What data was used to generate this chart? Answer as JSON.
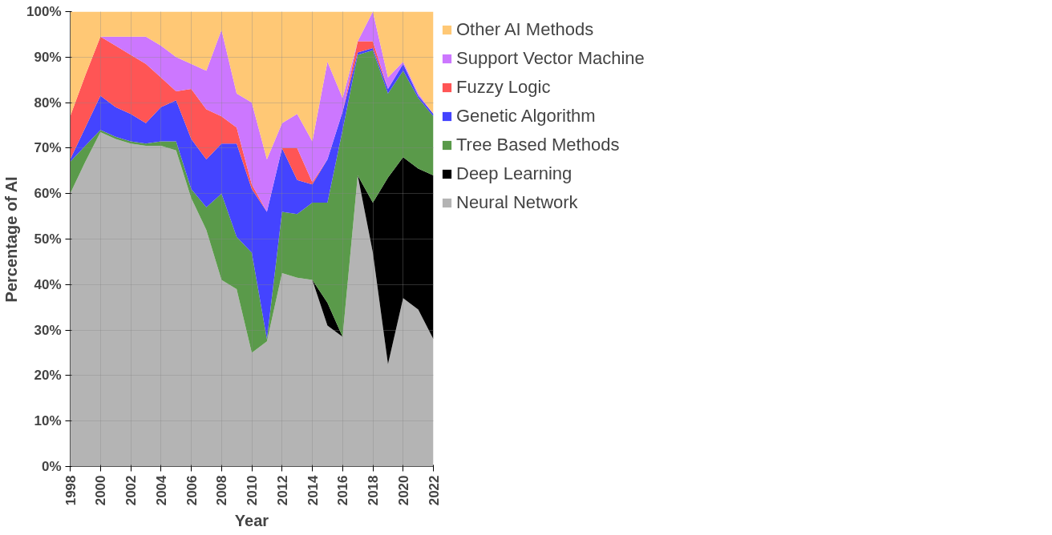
{
  "chart_data": {
    "type": "area",
    "stacked": true,
    "xlabel": "Year",
    "ylabel": "Percentage of AI",
    "x": [
      1998,
      1999,
      2000,
      2001,
      2002,
      2003,
      2004,
      2005,
      2006,
      2007,
      2008,
      2009,
      2010,
      2011,
      2012,
      2013,
      2014,
      2015,
      2016,
      2017,
      2018,
      2019,
      2020,
      2021,
      2022
    ],
    "xlim": [
      1998,
      2022
    ],
    "xticks": [
      1998,
      2000,
      2002,
      2004,
      2006,
      2008,
      2010,
      2012,
      2014,
      2016,
      2018,
      2020,
      2022
    ],
    "ylim": [
      0,
      100
    ],
    "yticks": [
      {
        "value": 0,
        "label": "0%"
      },
      {
        "value": 10,
        "label": "10%"
      },
      {
        "value": 20,
        "label": "20%"
      },
      {
        "value": 30,
        "label": "30%"
      },
      {
        "value": 40,
        "label": "40%"
      },
      {
        "value": 50,
        "label": "50%"
      },
      {
        "value": 60,
        "label": "60%"
      },
      {
        "value": 70,
        "label": "70%"
      },
      {
        "value": 80,
        "label": "80%"
      },
      {
        "value": 90,
        "label": "90%"
      },
      {
        "value": 100,
        "label": "100%"
      }
    ],
    "grid": true,
    "legend": "right",
    "series": [
      {
        "name": "Neural Network",
        "color": "#b4b4b4",
        "values": [
          60,
          67,
          73.5,
          72,
          71,
          70.5,
          70.5,
          69.5,
          59,
          52,
          41,
          39,
          25,
          27.5,
          42.5,
          41.5,
          41,
          31,
          28.5,
          64,
          47,
          22.5,
          37,
          34.5,
          28
        ]
      },
      {
        "name": "Deep Learning",
        "color": "#000000",
        "values": [
          0,
          0,
          0,
          0,
          0,
          0,
          0,
          0,
          0,
          0,
          0,
          0,
          0,
          0,
          0,
          0,
          0,
          5,
          0,
          0,
          11,
          41,
          31,
          31,
          36
        ]
      },
      {
        "name": "Tree Based Methods",
        "color": "#5a9a4a",
        "values": [
          7,
          3.5,
          0.5,
          0.5,
          0.5,
          0.5,
          1,
          2,
          2,
          5,
          19,
          11.5,
          22,
          0.5,
          13.5,
          14,
          17,
          22,
          45.5,
          26.5,
          33.5,
          18.5,
          19,
          15.5,
          13
        ]
      },
      {
        "name": "Genetic Algorithm",
        "color": "#4444ff",
        "values": [
          0.5,
          4,
          7.5,
          6.5,
          6,
          4.5,
          7.5,
          9,
          11,
          10.5,
          11,
          20.5,
          14,
          28,
          14,
          7.5,
          4,
          9.5,
          4,
          0.5,
          0.5,
          1,
          1.5,
          0.5,
          0.5
        ]
      },
      {
        "name": "Fuzzy Logic",
        "color": "#ff5555",
        "values": [
          9.5,
          11.5,
          13,
          13.5,
          13,
          13,
          6.5,
          2,
          11,
          11,
          6,
          3.5,
          1,
          0,
          0,
          7,
          0.5,
          0,
          0,
          2.5,
          1.5,
          0,
          0,
          0,
          0
        ]
      },
      {
        "name": "Support Vector Machine",
        "color": "#cc77ff",
        "values": [
          0,
          0,
          0,
          2,
          4,
          6,
          7,
          7.5,
          5.5,
          8.5,
          19,
          7.5,
          18,
          11.5,
          5.5,
          7.5,
          9,
          21.5,
          3,
          0,
          6.5,
          2.5,
          0.5,
          0.5,
          0
        ]
      },
      {
        "name": "Other AI Methods",
        "color": "#ffc875",
        "values": [
          23,
          14,
          5.5,
          5.5,
          5.5,
          5.5,
          7.5,
          10,
          11.5,
          13,
          4,
          18,
          20,
          32.5,
          24.5,
          22.5,
          28.5,
          11,
          19,
          6.5,
          0,
          14.5,
          11,
          18,
          22.5
        ]
      }
    ]
  }
}
